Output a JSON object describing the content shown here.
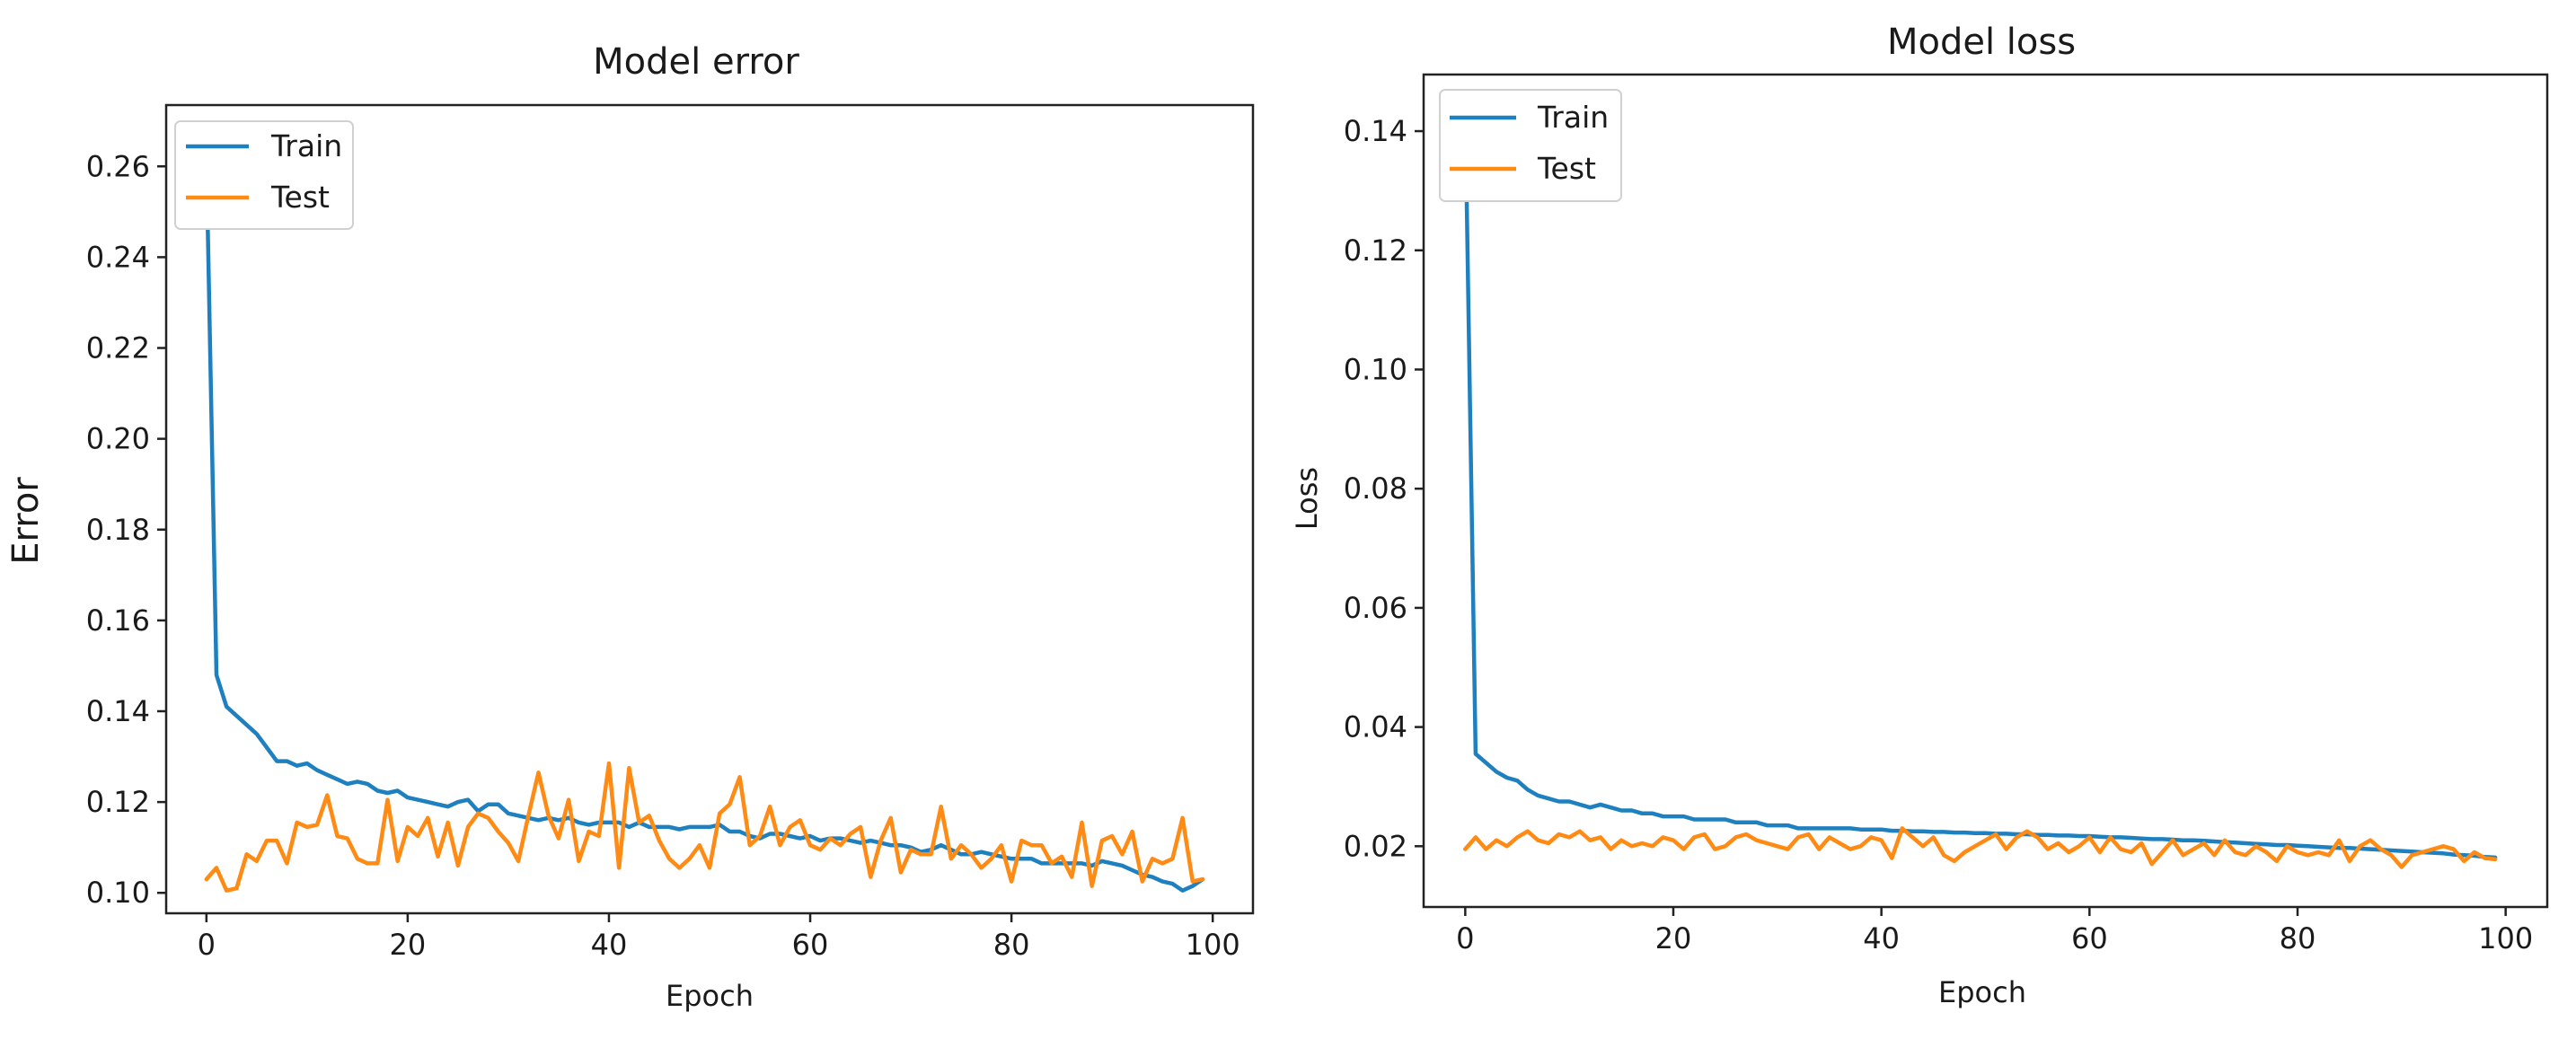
{
  "colors": {
    "train": "#1f80c0",
    "test": "#ff8a14"
  },
  "chart_data": [
    {
      "type": "line",
      "title": "Model error",
      "xlabel": "Epoch",
      "ylabel": "Error",
      "xlim": [
        -4,
        104
      ],
      "ylim": [
        0.0955,
        0.2735
      ],
      "xticks": [
        0,
        20,
        40,
        60,
        80,
        100
      ],
      "xtick_labels": [
        "0",
        "20",
        "40",
        "60",
        "80",
        "100"
      ],
      "yticks": [
        0.1,
        0.12,
        0.14,
        0.16,
        0.18,
        0.2,
        0.22,
        0.24,
        0.26
      ],
      "ytick_labels": [
        "0.10",
        "0.12",
        "0.14",
        "0.16",
        "0.18",
        "0.20",
        "0.22",
        "0.24",
        "0.26"
      ],
      "legend_position": "top-left",
      "legend": [
        "Train",
        "Test"
      ],
      "series": [
        {
          "name": "Train",
          "color_key": "train",
          "values": [
            0.262,
            0.148,
            0.141,
            0.139,
            0.137,
            0.135,
            0.132,
            0.129,
            0.129,
            0.128,
            0.1285,
            0.127,
            0.126,
            0.125,
            0.124,
            0.1245,
            0.124,
            0.1225,
            0.122,
            0.1225,
            0.121,
            0.1205,
            0.12,
            0.1195,
            0.119,
            0.12,
            0.1205,
            0.118,
            0.1195,
            0.1195,
            0.1175,
            0.117,
            0.1165,
            0.116,
            0.1165,
            0.116,
            0.1165,
            0.1155,
            0.115,
            0.1155,
            0.1155,
            0.1155,
            0.1145,
            0.1155,
            0.1145,
            0.1145,
            0.1145,
            0.114,
            0.1145,
            0.1145,
            0.1145,
            0.115,
            0.1135,
            0.1135,
            0.1125,
            0.112,
            0.113,
            0.113,
            0.1125,
            0.112,
            0.1125,
            0.1115,
            0.112,
            0.112,
            0.1115,
            0.111,
            0.1115,
            0.111,
            0.1105,
            0.1105,
            0.11,
            0.109,
            0.1095,
            0.1105,
            0.1095,
            0.1085,
            0.1085,
            0.109,
            0.1085,
            0.108,
            0.1075,
            0.1075,
            0.1075,
            0.1065,
            0.1065,
            0.1065,
            0.1065,
            0.1065,
            0.106,
            0.107,
            0.1065,
            0.106,
            0.105,
            0.104,
            0.1035,
            0.1025,
            0.102,
            0.1005,
            0.1015,
            0.103
          ]
        },
        {
          "name": "Test",
          "color_key": "test",
          "values": [
            0.103,
            0.1055,
            0.1005,
            0.101,
            0.1085,
            0.107,
            0.1115,
            0.1115,
            0.1065,
            0.1155,
            0.1145,
            0.115,
            0.1215,
            0.1125,
            0.112,
            0.1075,
            0.1065,
            0.1065,
            0.1205,
            0.107,
            0.1145,
            0.1125,
            0.1165,
            0.108,
            0.1155,
            0.106,
            0.1145,
            0.1175,
            0.1165,
            0.1135,
            0.111,
            0.107,
            0.117,
            0.1265,
            0.117,
            0.112,
            0.1205,
            0.107,
            0.1135,
            0.1125,
            0.1285,
            0.1055,
            0.1275,
            0.1155,
            0.117,
            0.1115,
            0.1075,
            0.1055,
            0.1075,
            0.1105,
            0.1055,
            0.1175,
            0.1195,
            0.1255,
            0.1105,
            0.1125,
            0.119,
            0.1105,
            0.1145,
            0.116,
            0.1105,
            0.1095,
            0.112,
            0.1105,
            0.113,
            0.1145,
            0.1035,
            0.1115,
            0.1165,
            0.1045,
            0.1095,
            0.1085,
            0.1085,
            0.119,
            0.1075,
            0.1105,
            0.1085,
            0.1055,
            0.1075,
            0.1105,
            0.1025,
            0.1115,
            0.1105,
            0.1105,
            0.1065,
            0.108,
            0.1035,
            0.1155,
            0.1015,
            0.1115,
            0.1125,
            0.1085,
            0.1135,
            0.1025,
            0.1075,
            0.1065,
            0.1075,
            0.1165,
            0.1025,
            0.103
          ]
        }
      ]
    },
    {
      "type": "line",
      "title": "Model loss",
      "xlabel": "Epoch",
      "ylabel": "Loss",
      "xlim": [
        -4,
        104
      ],
      "ylim": [
        0.0098,
        0.1495
      ],
      "xticks": [
        0,
        20,
        40,
        60,
        80,
        100
      ],
      "xtick_labels": [
        "0",
        "20",
        "40",
        "60",
        "80",
        "100"
      ],
      "yticks": [
        0.02,
        0.04,
        0.06,
        0.08,
        0.1,
        0.12,
        0.14
      ],
      "ytick_labels": [
        "0.02",
        "0.04",
        "0.06",
        "0.08",
        "0.10",
        "0.12",
        "0.14"
      ],
      "legend_position": "top-left",
      "legend": [
        "Train",
        "Test"
      ],
      "series": [
        {
          "name": "Train",
          "color_key": "train",
          "values": [
            0.144,
            0.0355,
            0.034,
            0.0325,
            0.0315,
            0.031,
            0.0295,
            0.0285,
            0.028,
            0.0275,
            0.0275,
            0.027,
            0.0265,
            0.027,
            0.0265,
            0.026,
            0.026,
            0.0255,
            0.0255,
            0.025,
            0.025,
            0.025,
            0.0245,
            0.0245,
            0.0245,
            0.0245,
            0.024,
            0.024,
            0.024,
            0.0235,
            0.0235,
            0.0235,
            0.023,
            0.023,
            0.023,
            0.023,
            0.023,
            0.023,
            0.0228,
            0.0228,
            0.0228,
            0.0226,
            0.0226,
            0.0225,
            0.0225,
            0.0224,
            0.0224,
            0.0223,
            0.0223,
            0.0222,
            0.0222,
            0.0221,
            0.0221,
            0.022,
            0.022,
            0.0219,
            0.0219,
            0.0218,
            0.0218,
            0.0217,
            0.0217,
            0.0216,
            0.0215,
            0.0215,
            0.0214,
            0.0213,
            0.0212,
            0.0212,
            0.0211,
            0.021,
            0.021,
            0.0209,
            0.0208,
            0.0207,
            0.0206,
            0.0205,
            0.0204,
            0.0203,
            0.0202,
            0.0202,
            0.0201,
            0.02,
            0.0199,
            0.0198,
            0.0197,
            0.0197,
            0.0196,
            0.0195,
            0.0194,
            0.0193,
            0.0192,
            0.0191,
            0.019,
            0.0189,
            0.0188,
            0.0186,
            0.0185,
            0.0184,
            0.0182,
            0.0181
          ]
        },
        {
          "name": "Test",
          "color_key": "test",
          "values": [
            0.0195,
            0.0215,
            0.0195,
            0.021,
            0.02,
            0.0215,
            0.0225,
            0.021,
            0.0205,
            0.022,
            0.0215,
            0.0225,
            0.021,
            0.0215,
            0.0195,
            0.021,
            0.02,
            0.0205,
            0.02,
            0.0215,
            0.021,
            0.0195,
            0.0215,
            0.022,
            0.0195,
            0.02,
            0.0215,
            0.022,
            0.021,
            0.0205,
            0.02,
            0.0195,
            0.0215,
            0.022,
            0.0195,
            0.0215,
            0.0205,
            0.0195,
            0.02,
            0.0215,
            0.021,
            0.018,
            0.023,
            0.0215,
            0.02,
            0.0215,
            0.0185,
            0.0175,
            0.019,
            0.02,
            0.021,
            0.022,
            0.0195,
            0.0215,
            0.0225,
            0.0215,
            0.0195,
            0.0205,
            0.019,
            0.02,
            0.0215,
            0.019,
            0.0215,
            0.0195,
            0.019,
            0.0205,
            0.017,
            0.019,
            0.021,
            0.0185,
            0.0195,
            0.0205,
            0.0185,
            0.021,
            0.019,
            0.0185,
            0.02,
            0.019,
            0.0175,
            0.02,
            0.019,
            0.0185,
            0.019,
            0.0185,
            0.021,
            0.0175,
            0.02,
            0.021,
            0.0195,
            0.0185,
            0.0165,
            0.0185,
            0.019,
            0.0195,
            0.02,
            0.0195,
            0.0175,
            0.019,
            0.018,
            0.0178
          ]
        }
      ]
    }
  ]
}
